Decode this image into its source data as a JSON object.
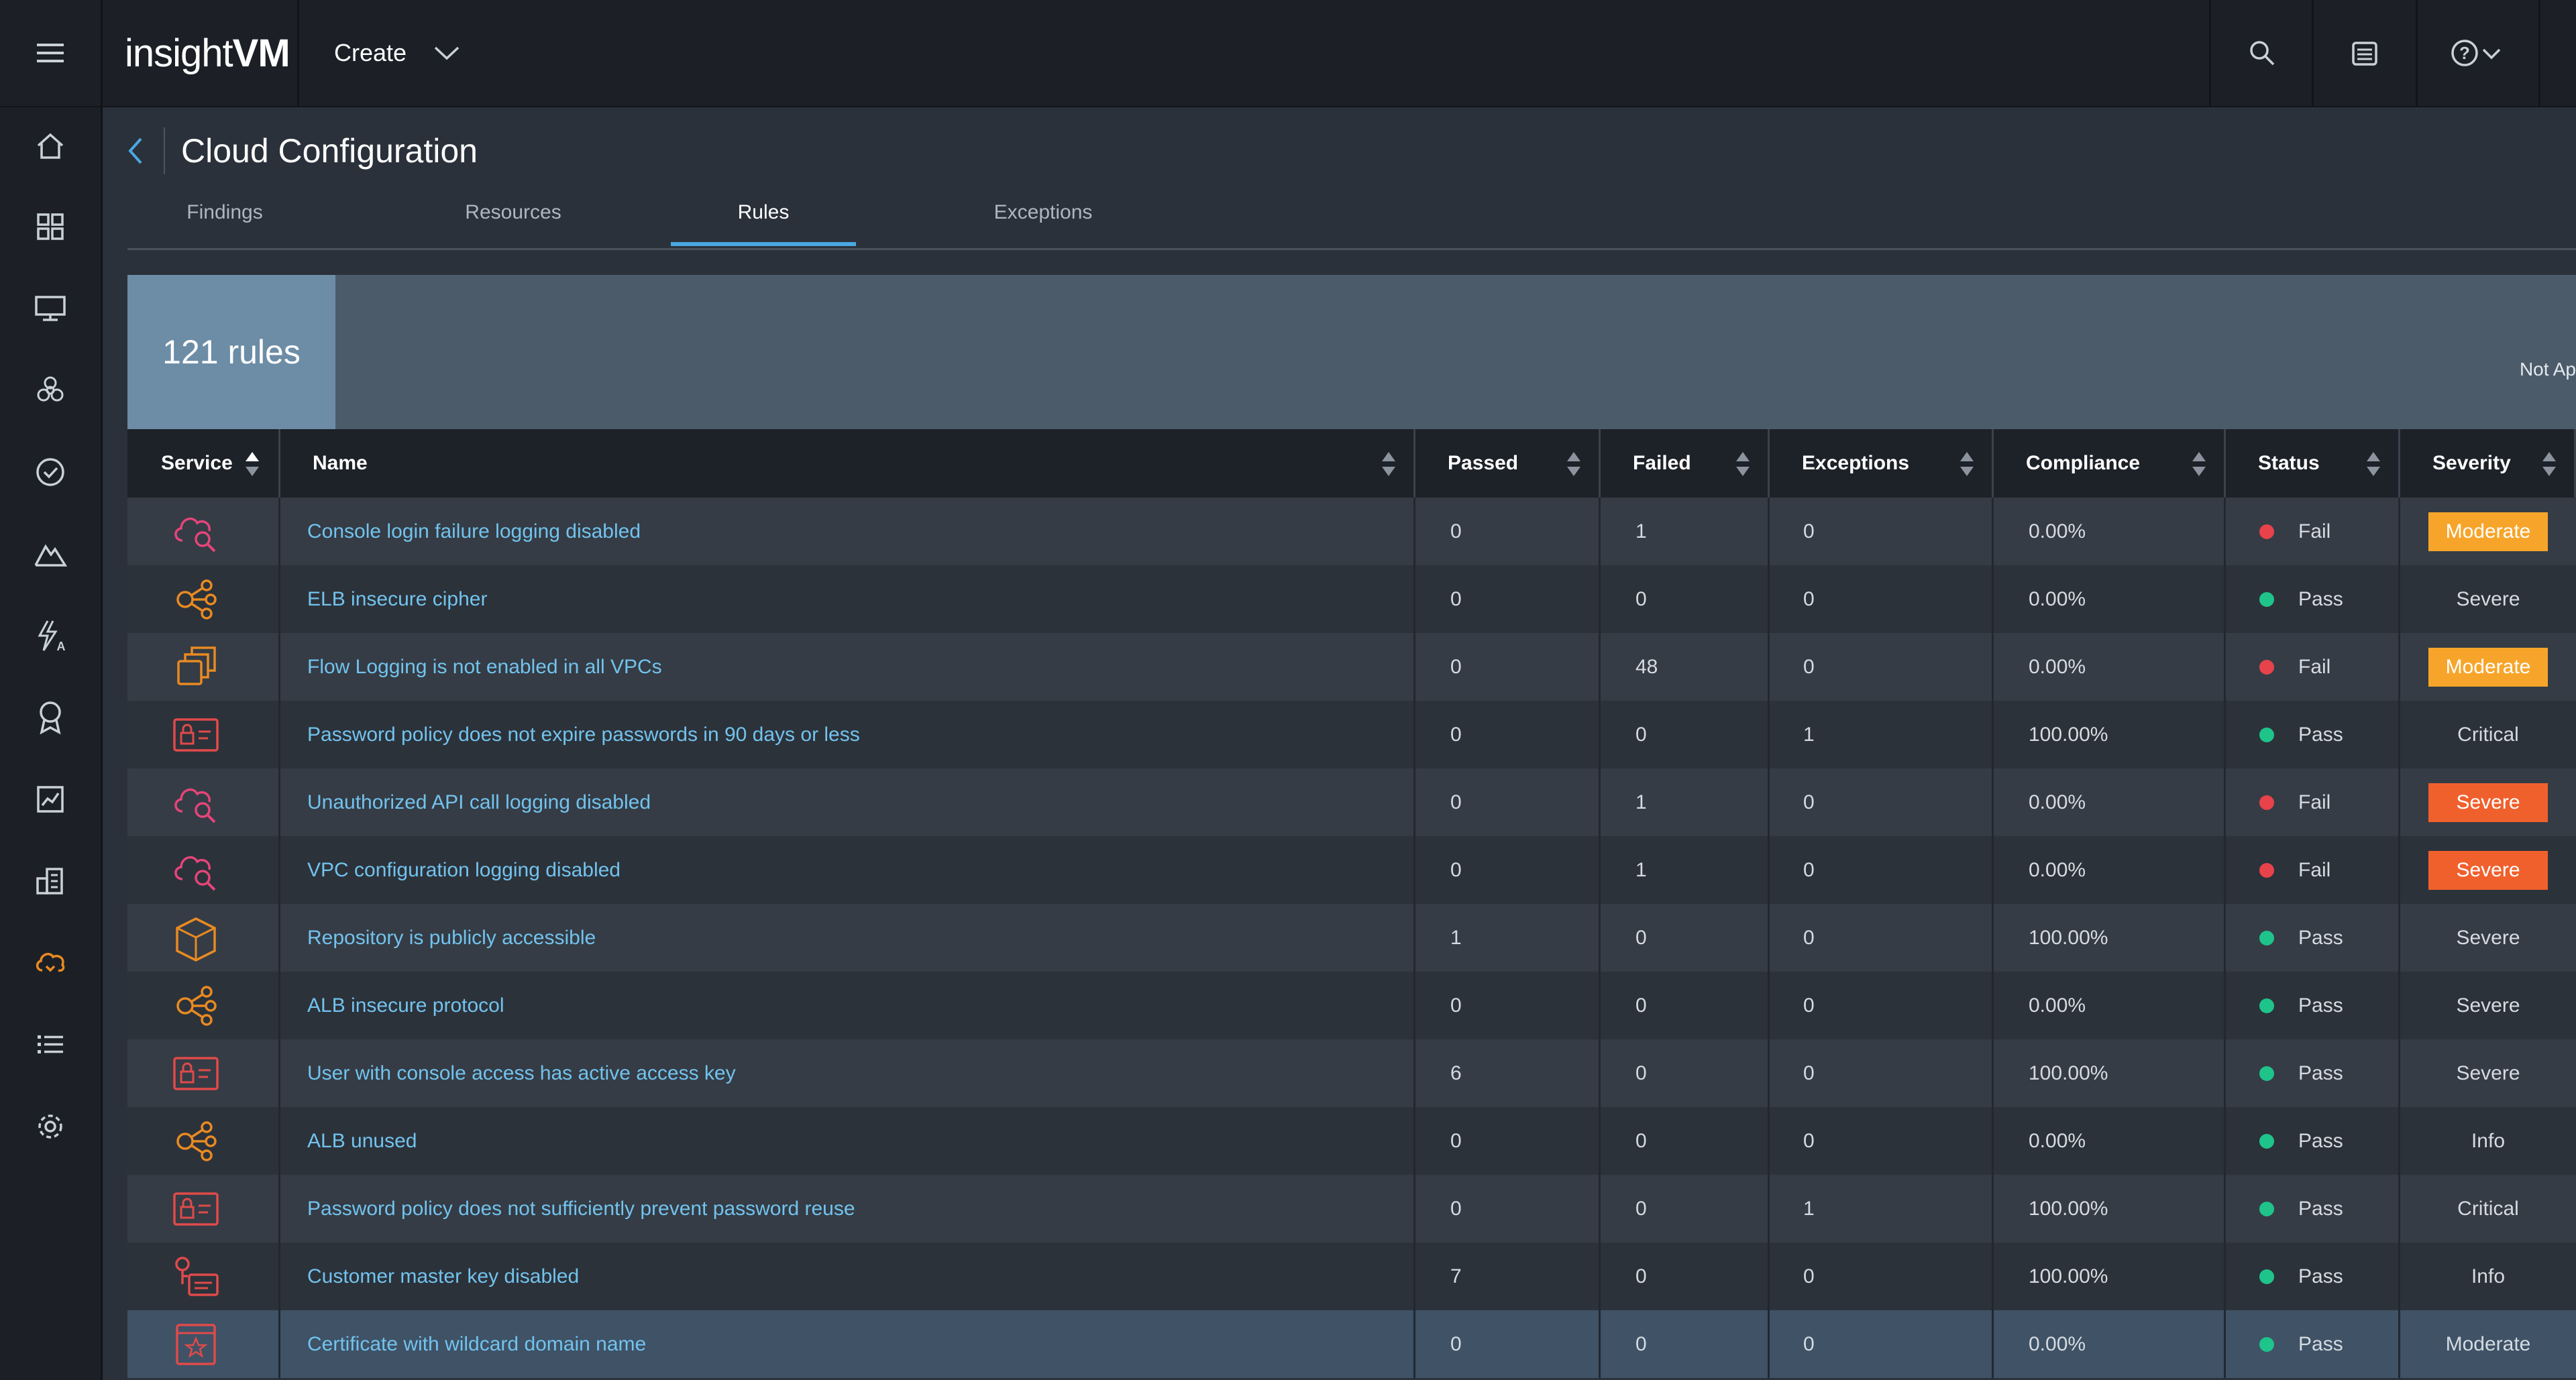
{
  "app": {
    "logo_light": "insight",
    "logo_bold": "VM",
    "create_label": "Create"
  },
  "page": {
    "title": "Cloud Configuration"
  },
  "tabs": [
    {
      "label": "Findings",
      "active": false
    },
    {
      "label": "Resources",
      "active": false
    },
    {
      "label": "Rules",
      "active": true
    },
    {
      "label": "Exceptions",
      "active": false
    }
  ],
  "summary": {
    "count_label": "121 rules",
    "right_label": "Not Ap"
  },
  "columns": {
    "service": "Service",
    "name": "Name",
    "passed": "Passed",
    "failed": "Failed",
    "exceptions": "Exceptions",
    "compliance": "Compliance",
    "status": "Status",
    "severity": "Severity"
  },
  "colors": {
    "pass": "#1ec48a",
    "fail": "#e8424b",
    "moderate": "#f7a52a",
    "severe": "#f0602d",
    "icon_pink": "#e6457a",
    "icon_orange": "#e98a22",
    "icon_red": "#e04a4a",
    "link": "#72c3ee"
  },
  "rules": [
    {
      "icon": "cloud-search-icon",
      "icon_color": "pink",
      "name": "Console login failure logging disabled",
      "passed": "0",
      "failed": "1",
      "exceptions": "0",
      "compliance": "0.00%",
      "status": "Fail",
      "severity": "Moderate",
      "badge": "moderate"
    },
    {
      "icon": "network-nodes-icon",
      "icon_color": "orange",
      "name": "ELB insecure cipher",
      "passed": "0",
      "failed": "0",
      "exceptions": "0",
      "compliance": "0.00%",
      "status": "Pass",
      "severity": "Severe",
      "badge": ""
    },
    {
      "icon": "stacked-squares-icon",
      "icon_color": "orange",
      "name": "Flow Logging is not enabled in all VPCs",
      "passed": "0",
      "failed": "48",
      "exceptions": "0",
      "compliance": "0.00%",
      "status": "Fail",
      "severity": "Moderate",
      "badge": "moderate"
    },
    {
      "icon": "id-card-lock-icon",
      "icon_color": "red",
      "name": "Password policy does not expire passwords in 90 days or less",
      "passed": "0",
      "failed": "0",
      "exceptions": "1",
      "compliance": "100.00%",
      "status": "Pass",
      "severity": "Critical",
      "badge": ""
    },
    {
      "icon": "cloud-search-icon",
      "icon_color": "pink",
      "name": "Unauthorized API call logging disabled",
      "passed": "0",
      "failed": "1",
      "exceptions": "0",
      "compliance": "0.00%",
      "status": "Fail",
      "severity": "Severe",
      "badge": "severe"
    },
    {
      "icon": "cloud-search-icon",
      "icon_color": "pink",
      "name": "VPC configuration logging disabled",
      "passed": "0",
      "failed": "1",
      "exceptions": "0",
      "compliance": "0.00%",
      "status": "Fail",
      "severity": "Severe",
      "badge": "severe"
    },
    {
      "icon": "cube-icon",
      "icon_color": "orange",
      "name": "Repository is publicly accessible",
      "passed": "1",
      "failed": "0",
      "exceptions": "0",
      "compliance": "100.00%",
      "status": "Pass",
      "severity": "Severe",
      "badge": ""
    },
    {
      "icon": "network-nodes-icon",
      "icon_color": "orange",
      "name": "ALB insecure protocol",
      "passed": "0",
      "failed": "0",
      "exceptions": "0",
      "compliance": "0.00%",
      "status": "Pass",
      "severity": "Severe",
      "badge": ""
    },
    {
      "icon": "id-card-lock-icon",
      "icon_color": "red",
      "name": "User with console access has active access key",
      "passed": "6",
      "failed": "0",
      "exceptions": "0",
      "compliance": "100.00%",
      "status": "Pass",
      "severity": "Severe",
      "badge": ""
    },
    {
      "icon": "network-nodes-icon",
      "icon_color": "orange",
      "name": "ALB unused",
      "passed": "0",
      "failed": "0",
      "exceptions": "0",
      "compliance": "0.00%",
      "status": "Pass",
      "severity": "Info",
      "badge": ""
    },
    {
      "icon": "id-card-lock-icon",
      "icon_color": "red",
      "name": "Password policy does not sufficiently prevent password reuse",
      "passed": "0",
      "failed": "0",
      "exceptions": "1",
      "compliance": "100.00%",
      "status": "Pass",
      "severity": "Critical",
      "badge": ""
    },
    {
      "icon": "key-card-icon",
      "icon_color": "red",
      "name": "Customer master key disabled",
      "passed": "7",
      "failed": "0",
      "exceptions": "0",
      "compliance": "100.00%",
      "status": "Pass",
      "severity": "Info",
      "badge": ""
    },
    {
      "icon": "certificate-icon",
      "icon_color": "red",
      "name": "Certificate with wildcard domain name",
      "passed": "0",
      "failed": "0",
      "exceptions": "0",
      "compliance": "0.00%",
      "status": "Pass",
      "severity": "Moderate",
      "badge": ""
    }
  ]
}
